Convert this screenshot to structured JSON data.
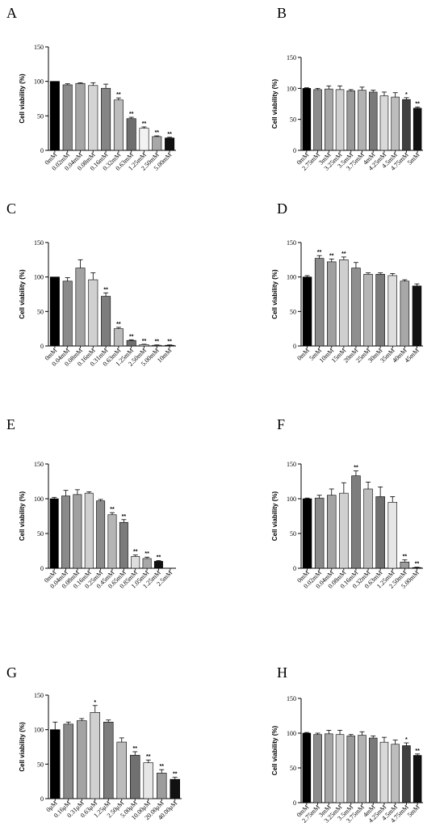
{
  "chart_data": [
    {
      "panel": "A",
      "type": "bar",
      "ylabel": "Cell viability (%)",
      "ylim": [
        0,
        150
      ],
      "yticks": [
        0,
        50,
        100,
        150
      ],
      "categories": [
        "0mM",
        "0.02mM",
        "0.04mM",
        "0.08mM",
        "0.16mM",
        "0.32mM",
        "0.63mM",
        "1.25mM",
        "2.50mM",
        "5.00mM"
      ],
      "values": [
        100,
        95,
        97,
        94,
        90,
        73,
        46,
        32,
        20,
        18
      ],
      "errors": [
        0,
        1.5,
        1,
        4,
        6,
        3,
        2,
        2,
        1,
        1
      ],
      "colors": [
        "#000000",
        "#8a8a8a",
        "#a6a6a6",
        "#d4d4d4",
        "#858585",
        "#bdbdbd",
        "#6e6e6e",
        "#f2f2f2",
        "#a8a8a8",
        "#111111"
      ],
      "significance": [
        "",
        "",
        "",
        "",
        "",
        "**",
        "**",
        "**",
        "**",
        "**"
      ]
    },
    {
      "panel": "B",
      "type": "bar",
      "ylabel": "Cell viability (%)",
      "ylim": [
        0,
        150
      ],
      "yticks": [
        0,
        50,
        100,
        150
      ],
      "categories": [
        "0mM",
        "2.75mM",
        "3mM",
        "3.25mM",
        "3.5mM",
        "3.75mM",
        "4mM",
        "4.25mM",
        "4.5mM",
        "4.75mM",
        "5mM"
      ],
      "values": [
        100,
        98,
        99,
        98,
        96,
        97,
        94,
        88,
        86,
        82,
        68
      ],
      "errors": [
        1,
        2,
        5,
        6,
        2,
        5,
        3,
        6,
        7,
        3,
        2
      ],
      "colors": [
        "#000000",
        "#8c8c8c",
        "#a6a6a6",
        "#cfcfcf",
        "#9a9a9a",
        "#b2b2b2",
        "#7a7a7a",
        "#d9d9d9",
        "#bdbdbd",
        "#404040",
        "#111111"
      ],
      "significance": [
        "",
        "",
        "",
        "",
        "",
        "",
        "",
        "",
        "",
        "*",
        "**"
      ]
    },
    {
      "panel": "C",
      "type": "bar",
      "ylabel": "Cell viability (%)",
      "ylim": [
        0,
        150
      ],
      "yticks": [
        0,
        50,
        100,
        150
      ],
      "categories": [
        "0mM",
        "0.04mM",
        "0.08mM",
        "0.16mM",
        "0.31mM",
        "0.63mM",
        "1.25mM",
        "2.50mM",
        "5.00mM",
        "10mM"
      ],
      "values": [
        100,
        94,
        113,
        96,
        72,
        25,
        8,
        2,
        1,
        1
      ],
      "errors": [
        0,
        5,
        12,
        10,
        5,
        2,
        1,
        0.5,
        0.5,
        0.5
      ],
      "colors": [
        "#000000",
        "#8a8a8a",
        "#a3a3a3",
        "#d0d0d0",
        "#7d7d7d",
        "#bcbcbc",
        "#707070",
        "#e2e2e2",
        "#9c9c9c",
        "#111111"
      ],
      "significance": [
        "",
        "",
        "",
        "",
        "**",
        "**",
        "**",
        "**",
        "**",
        "**"
      ]
    },
    {
      "panel": "D",
      "type": "bar",
      "ylabel": "Cell viability (%)",
      "ylim": [
        0,
        150
      ],
      "yticks": [
        0,
        50,
        100,
        150
      ],
      "categories": [
        "0mM",
        "5mM",
        "10mM",
        "15mM",
        "20mM",
        "25mM",
        "30mM",
        "35mM",
        "40mM",
        "45mM"
      ],
      "values": [
        100,
        127,
        122,
        125,
        113,
        104,
        104,
        102,
        94,
        87
      ],
      "errors": [
        2,
        4,
        4,
        4,
        8,
        2,
        2,
        3,
        2,
        3
      ],
      "colors": [
        "#000000",
        "#8a8a8a",
        "#a0a0a0",
        "#cfcfcf",
        "#8f8f8f",
        "#b5b5b5",
        "#7b7b7b",
        "#dedede",
        "#a8a8a8",
        "#111111"
      ],
      "significance": [
        "",
        "**",
        "**",
        "**",
        "",
        "",
        "",
        "",
        "",
        ""
      ]
    },
    {
      "panel": "E",
      "type": "bar",
      "ylabel": "Cell viability (%)",
      "ylim": [
        0,
        150
      ],
      "yticks": [
        0,
        50,
        100,
        150
      ],
      "categories": [
        "0mM",
        "0.04mM",
        "0.08mM",
        "0.16mM",
        "0.25mM",
        "0.45mM",
        "0.65mM",
        "0.85mM",
        "1.05mM",
        "1.25mM",
        "2.5mM"
      ],
      "values": [
        100,
        104,
        106,
        108,
        97,
        77,
        66,
        17,
        14,
        10,
        0
      ],
      "errors": [
        2,
        8,
        7,
        2,
        2,
        3,
        4,
        2,
        2,
        1,
        0
      ],
      "colors": [
        "#000000",
        "#8a8a8a",
        "#a0a0a0",
        "#cfcfcf",
        "#8b8b8b",
        "#b5b5b5",
        "#7b7b7b",
        "#dedede",
        "#a8a8a8",
        "#111111",
        "#111111"
      ],
      "significance": [
        "",
        "",
        "",
        "",
        "",
        "**",
        "**",
        "**",
        "**",
        "**",
        ""
      ]
    },
    {
      "panel": "F",
      "type": "bar",
      "ylabel": "Cell viability (%)",
      "ylim": [
        0,
        150
      ],
      "yticks": [
        0,
        50,
        100,
        150
      ],
      "categories": [
        "0mM",
        "0.02mM",
        "0.04mM",
        "0.08mM",
        "0.16mM",
        "0.32mM",
        "0.63mM",
        "1.25mM",
        "2.50mM",
        "5.00mM"
      ],
      "values": [
        100,
        101,
        105,
        108,
        133,
        114,
        103,
        95,
        9,
        1
      ],
      "errors": [
        1,
        4,
        9,
        15,
        7,
        10,
        14,
        8,
        3,
        0.5
      ],
      "colors": [
        "#000000",
        "#8a8a8a",
        "#a3a3a3",
        "#d0d0d0",
        "#7d7d7d",
        "#bcbcbc",
        "#707070",
        "#e6e6e6",
        "#9c9c9c",
        "#111111"
      ],
      "significance": [
        "",
        "",
        "",
        "",
        "**",
        "",
        "",
        "",
        "**",
        "**"
      ]
    },
    {
      "panel": "G",
      "type": "bar",
      "ylabel": "Cell viability (%)",
      "ylim": [
        0,
        150
      ],
      "yticks": [
        0,
        50,
        100,
        150
      ],
      "categories": [
        "0μM",
        "0.16μM",
        "0.31μM",
        "0.63μM",
        "1.25μM",
        "2.50μM",
        "5.00μM",
        "10.00μM",
        "20.00μM",
        "40.00μM"
      ],
      "values": [
        100,
        108,
        113,
        125,
        111,
        82,
        63,
        52,
        37,
        28
      ],
      "errors": [
        11,
        3,
        3,
        10,
        3,
        6,
        5,
        4,
        5,
        3
      ],
      "colors": [
        "#000000",
        "#8a8a8a",
        "#a3a3a3",
        "#d0d0d0",
        "#7d7d7d",
        "#bcbcbc",
        "#707070",
        "#e6e6e6",
        "#9c9c9c",
        "#111111"
      ],
      "significance": [
        "",
        "",
        "",
        "*",
        "",
        "",
        "**",
        "**",
        "**",
        "**"
      ]
    },
    {
      "panel": "H",
      "type": "bar",
      "ylabel": "Cell viability (%)",
      "ylim": [
        0,
        150
      ],
      "yticks": [
        0,
        50,
        100,
        150
      ],
      "categories": [
        "0mM",
        "2.75mM",
        "3mM",
        "3.25mM",
        "3.5mM",
        "3.75mM",
        "4mM",
        "4.25mM",
        "4.5mM",
        "4.75mM",
        "5mM"
      ],
      "values": [
        100,
        98,
        99,
        98,
        96,
        97,
        93,
        87,
        84,
        82,
        68
      ],
      "errors": [
        1,
        2,
        5,
        6,
        2,
        5,
        3,
        7,
        6,
        4,
        2
      ],
      "colors": [
        "#000000",
        "#8c8c8c",
        "#a6a6a6",
        "#cfcfcf",
        "#9a9a9a",
        "#b2b2b2",
        "#7a7a7a",
        "#d9d9d9",
        "#bdbdbd",
        "#404040",
        "#111111"
      ],
      "significance": [
        "",
        "",
        "",
        "",
        "",
        "",
        "",
        "",
        "",
        "*",
        "**"
      ]
    }
  ]
}
